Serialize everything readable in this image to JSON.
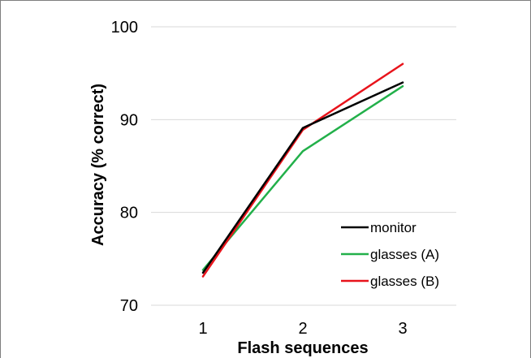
{
  "chart_data": {
    "type": "line",
    "title": "",
    "xlabel": "Flash sequences",
    "ylabel": "Accuracy (% correct)",
    "x": [
      1,
      2,
      3
    ],
    "x_tick_labels": [
      "1",
      "2",
      "3"
    ],
    "ylim": [
      70,
      100
    ],
    "y_ticks": [
      70,
      80,
      90,
      100
    ],
    "y_tick_labels": [
      "70",
      "80",
      "90",
      "100"
    ],
    "grid": "horizontal",
    "legend_position": "bottom-right",
    "series": [
      {
        "name": "monitor",
        "color": "#000000",
        "values": [
          73.5,
          89.1,
          94.0
        ]
      },
      {
        "name": "glasses (A)",
        "color": "#22b04a",
        "values": [
          73.8,
          86.6,
          93.6
        ]
      },
      {
        "name": "glasses (B)",
        "color": "#e8131b",
        "values": [
          73.1,
          88.9,
          96.0
        ]
      }
    ]
  }
}
